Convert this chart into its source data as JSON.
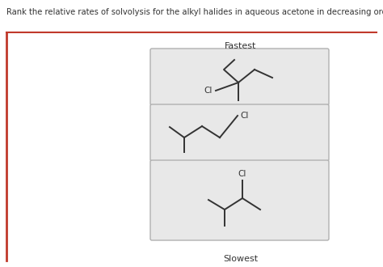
{
  "title_text": "Rank the relative rates of solvolysis for the alkyl halides in aqueous acetone in decreasing order.",
  "fastest_label": "Fastest",
  "slowest_label": "Slowest",
  "bg_color": "#ffffff",
  "outer_box_edge_color": "#c0392b",
  "inner_box_color": "#e8e8e8",
  "box_border_color": "#b0b0b0",
  "line_color": "#333333",
  "text_color": "#333333",
  "figsize": [
    4.74,
    3.3
  ],
  "dpi": 100
}
